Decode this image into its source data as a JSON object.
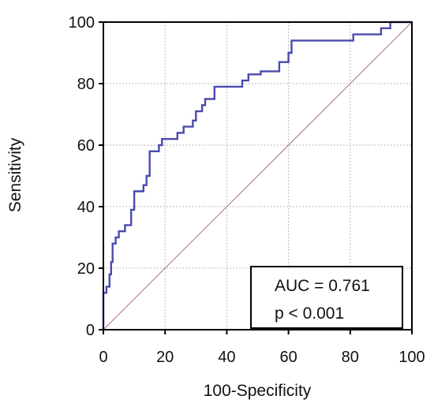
{
  "chart_data": {
    "type": "line",
    "xlabel": "100-Specificity",
    "ylabel": "Sensitivity",
    "xlim": [
      0,
      100
    ],
    "ylim": [
      0,
      100
    ],
    "x_ticks": [
      "0",
      "20",
      "40",
      "60",
      "80",
      "100"
    ],
    "y_ticks": [
      "0",
      "20",
      "40",
      "60",
      "80",
      "100"
    ],
    "grid": true,
    "legend_placement": "bottom-right",
    "annotations": [
      "AUC = 0.761",
      "p < 0.001"
    ],
    "colors": {
      "roc": "#4a4ab0",
      "reference": "#b07070",
      "grid": "#b8b8b8",
      "axis": "#000000"
    },
    "series": [
      {
        "values": [
          [
            0,
            0
          ],
          [
            0,
            12
          ],
          [
            1,
            12
          ],
          [
            1,
            14
          ],
          [
            2,
            14
          ],
          [
            2,
            18
          ],
          [
            2.5,
            18
          ],
          [
            2.5,
            22
          ],
          [
            3,
            22
          ],
          [
            3,
            28
          ],
          [
            4,
            28
          ],
          [
            4,
            30
          ],
          [
            5,
            30
          ],
          [
            5,
            32
          ],
          [
            7,
            32
          ],
          [
            7,
            34
          ],
          [
            9,
            34
          ],
          [
            9,
            39
          ],
          [
            10,
            39
          ],
          [
            10,
            45
          ],
          [
            13,
            45
          ],
          [
            13,
            47
          ],
          [
            14,
            47
          ],
          [
            14,
            50
          ],
          [
            15,
            50
          ],
          [
            15,
            58
          ],
          [
            18,
            58
          ],
          [
            18,
            60
          ],
          [
            19,
            60
          ],
          [
            19,
            62
          ],
          [
            24,
            62
          ],
          [
            24,
            64
          ],
          [
            26,
            64
          ],
          [
            26,
            66
          ],
          [
            29,
            66
          ],
          [
            29,
            68
          ],
          [
            30,
            68
          ],
          [
            30,
            71
          ],
          [
            32,
            71
          ],
          [
            32,
            73
          ],
          [
            33,
            73
          ],
          [
            33,
            75
          ],
          [
            36,
            75
          ],
          [
            36,
            79
          ],
          [
            45,
            79
          ],
          [
            45,
            81
          ],
          [
            47,
            81
          ],
          [
            47,
            83
          ],
          [
            51,
            83
          ],
          [
            51,
            84
          ],
          [
            57,
            84
          ],
          [
            57,
            87
          ],
          [
            60,
            87
          ],
          [
            60,
            90
          ],
          [
            61,
            90
          ],
          [
            61,
            94
          ],
          [
            81,
            94
          ],
          [
            81,
            96
          ],
          [
            90,
            96
          ],
          [
            90,
            98
          ],
          [
            93,
            98
          ],
          [
            93,
            100
          ],
          [
            100,
            100
          ]
        ]
      },
      {
        "values": [
          [
            0,
            0
          ],
          [
            100,
            100
          ]
        ]
      }
    ]
  }
}
